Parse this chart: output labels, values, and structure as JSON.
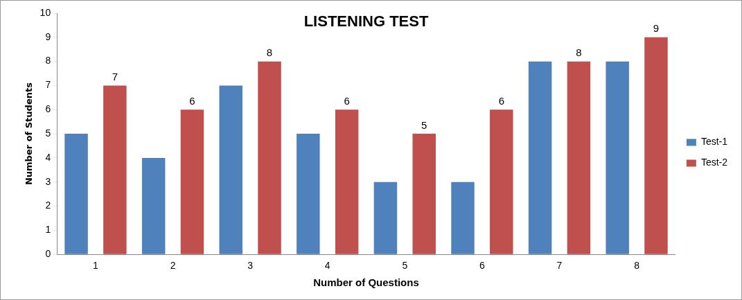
{
  "chart_data": {
    "type": "bar",
    "title": "LISTENING TEST",
    "xlabel": "Number of Questions",
    "ylabel": "Number of Students",
    "categories": [
      "1",
      "2",
      "3",
      "4",
      "5",
      "6",
      "7",
      "8"
    ],
    "series": [
      {
        "name": "Test-1",
        "color": "#4f81bd",
        "values": [
          5,
          4,
          7,
          5,
          3,
          3,
          8,
          8
        ]
      },
      {
        "name": "Test-2",
        "color": "#c0504d",
        "values": [
          7,
          6,
          8,
          6,
          5,
          6,
          8,
          9
        ],
        "value_labels": [
          "7",
          "6",
          "8",
          "6",
          "5",
          "6",
          "8",
          "9"
        ]
      }
    ],
    "ylim": [
      0,
      10
    ],
    "yticks": [
      0,
      1,
      2,
      3,
      4,
      5,
      6,
      7,
      8,
      9,
      10
    ],
    "legend": "right"
  }
}
